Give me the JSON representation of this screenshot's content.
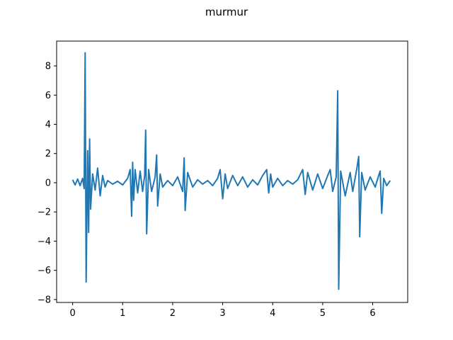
{
  "chart_data": {
    "type": "line",
    "title": "murmur",
    "xlabel": "",
    "ylabel": "",
    "xlim": [
      -0.32,
      6.7
    ],
    "ylim": [
      -8.2,
      9.7
    ],
    "grid": false,
    "legend": "none",
    "x_ticks": [
      0,
      1,
      2,
      3,
      4,
      5,
      6
    ],
    "y_ticks": [
      -8,
      -6,
      -4,
      -2,
      0,
      2,
      4,
      6,
      8
    ],
    "x_tick_labels": [
      "0",
      "1",
      "2",
      "3",
      "4",
      "5",
      "6"
    ],
    "y_tick_labels": [
      "−8",
      "−6",
      "−4",
      "−2",
      "0",
      "2",
      "4",
      "6",
      "8"
    ],
    "series_color": "#1f77b4",
    "series": [
      {
        "x": [
          0,
          0.05,
          0.1,
          0.15,
          0.2,
          0.23,
          0.25,
          0.27,
          0.3,
          0.32,
          0.34,
          0.36,
          0.4,
          0.45,
          0.5,
          0.55,
          0.6,
          0.65,
          0.7,
          0.8,
          0.9,
          1.0,
          1.1,
          1.15,
          1.18,
          1.2,
          1.22,
          1.25,
          1.3,
          1.35,
          1.4,
          1.44,
          1.46,
          1.48,
          1.52,
          1.58,
          1.65,
          1.68,
          1.7,
          1.75,
          1.8,
          1.9,
          2.0,
          2.1,
          2.2,
          2.23,
          2.25,
          2.3,
          2.4,
          2.5,
          2.6,
          2.7,
          2.8,
          2.9,
          2.95,
          3.0,
          3.05,
          3.1,
          3.2,
          3.3,
          3.4,
          3.5,
          3.6,
          3.7,
          3.8,
          3.88,
          3.92,
          3.96,
          4.0,
          4.1,
          4.2,
          4.3,
          4.4,
          4.5,
          4.6,
          4.65,
          4.7,
          4.8,
          4.9,
          5.0,
          5.1,
          5.15,
          5.2,
          5.27,
          5.3,
          5.32,
          5.36,
          5.45,
          5.55,
          5.6,
          5.68,
          5.72,
          5.74,
          5.78,
          5.85,
          5.95,
          6.05,
          6.12,
          6.15,
          6.18,
          6.22,
          6.28,
          6.35
        ],
        "y": [
          0.2,
          -0.15,
          0.25,
          -0.2,
          0.3,
          -0.4,
          8.9,
          -6.8,
          2.2,
          -3.4,
          3.0,
          -1.8,
          0.6,
          -0.5,
          1.0,
          -0.9,
          0.5,
          -0.3,
          0.15,
          -0.1,
          0.1,
          -0.15,
          0.3,
          0.9,
          -2.3,
          1.4,
          -1.2,
          0.9,
          -0.7,
          0.8,
          -0.6,
          0.5,
          3.6,
          -3.5,
          0.9,
          -0.6,
          0.4,
          1.9,
          -1.6,
          0.6,
          -0.3,
          0.15,
          -0.2,
          0.4,
          -0.6,
          1.7,
          -1.9,
          0.7,
          -0.3,
          0.2,
          -0.1,
          0.15,
          -0.2,
          0.3,
          0.9,
          -1.1,
          0.6,
          -0.4,
          0.5,
          -0.2,
          0.4,
          -0.3,
          0.2,
          -0.15,
          0.5,
          0.9,
          -0.7,
          0.6,
          -0.3,
          0.3,
          -0.2,
          0.15,
          -0.1,
          0.2,
          0.9,
          -0.8,
          0.7,
          -0.5,
          0.6,
          -0.4,
          0.5,
          0.9,
          -0.6,
          0.4,
          6.3,
          -7.3,
          0.8,
          -0.9,
          0.7,
          -0.6,
          0.9,
          1.8,
          -3.7,
          0.7,
          -0.5,
          0.4,
          -0.3,
          0.5,
          0.8,
          -2.1,
          0.3,
          -0.2,
          0.15
        ]
      }
    ]
  }
}
